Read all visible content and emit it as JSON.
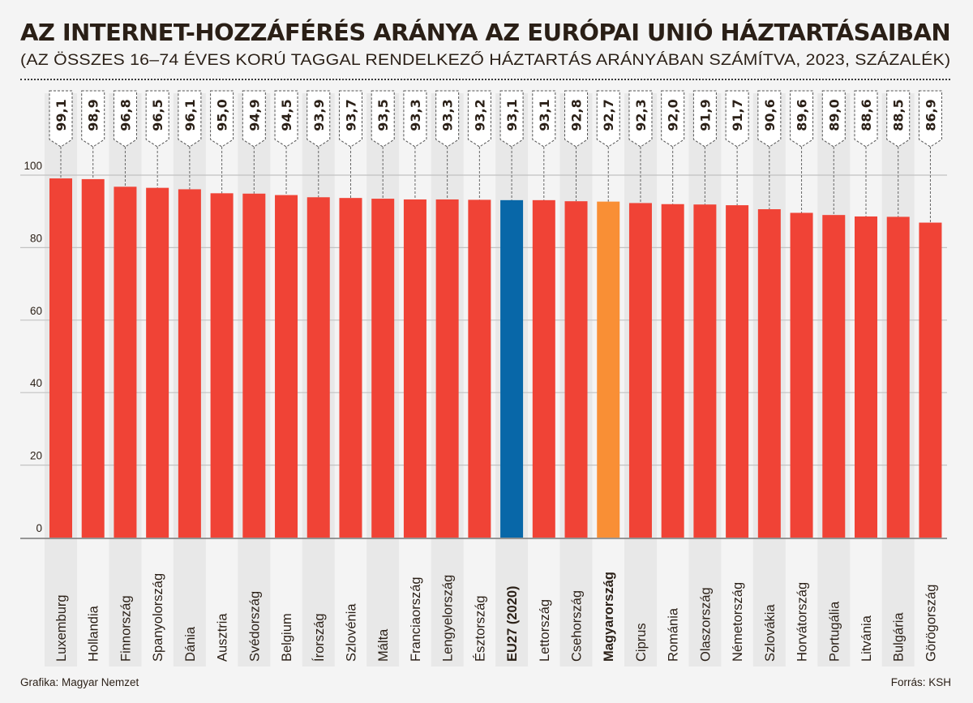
{
  "header": {
    "title": "AZ INTERNET-HOZZÁFÉRÉS ARÁNYA AZ EURÓPAI UNIÓ HÁZTARTÁSAIBAN",
    "subtitle": "(AZ ÖSSZES 16–74 ÉVES KORÚ TAGGAL RENDELKEZŐ HÁZTARTÁS ARÁNYÁBAN SZÁMÍTVA, 2023, SZÁZALÉK)"
  },
  "footer": {
    "credit": "Grafika: Magyar Nemzet",
    "source": "Forrás: KSH"
  },
  "colors": {
    "default_bar": "#f04336",
    "eu_average_bar": "#0867a8",
    "hungary_bar": "#f98f35",
    "band": "#e8e8e8",
    "background": "#f4f4f4",
    "text": "#2a1f16"
  },
  "chart_data": {
    "type": "bar",
    "title": "AZ INTERNET-HOZZÁFÉRÉS ARÁNYA AZ EURÓPAI UNIÓ HÁZTARTÁSAIBAN",
    "subtitle": "(AZ ÖSSZES 16–74 ÉVES KORÚ TAGGAL RENDELKEZŐ HÁZTARTÁS ARÁNYÁBAN SZÁMÍTVA, 2023, SZÁZALÉK)",
    "xlabel": "",
    "ylabel": "",
    "ylim": [
      0,
      100
    ],
    "yticks": [
      0,
      20,
      40,
      60,
      80,
      100
    ],
    "grid": true,
    "legend": "none",
    "categories": [
      "Luxemburg",
      "Hollandia",
      "Finnország",
      "Spanyolország",
      "Dánia",
      "Ausztria",
      "Svédország",
      "Belgium",
      "Írország",
      "Szlovénia",
      "Málta",
      "Franciaország",
      "Lengyelország",
      "Észtország",
      "EU27 (2020)",
      "Lettország",
      "Csehország",
      "Magyarország",
      "Ciprus",
      "Románia",
      "Olaszország",
      "Németország",
      "Szlovákia",
      "Horvátország",
      "Portugália",
      "Litvánia",
      "Bulgária",
      "Görögország"
    ],
    "values": [
      99.1,
      98.9,
      96.8,
      96.5,
      96.1,
      95.0,
      94.9,
      94.5,
      93.9,
      93.7,
      93.5,
      93.3,
      93.3,
      93.2,
      93.1,
      93.1,
      92.8,
      92.7,
      92.3,
      92.0,
      91.9,
      91.7,
      90.6,
      89.6,
      89.0,
      88.6,
      88.5,
      86.9
    ],
    "value_labels": [
      "99,1",
      "98,9",
      "96,8",
      "96,5",
      "96,1",
      "95,0",
      "94,9",
      "94,5",
      "93,9",
      "93,7",
      "93,5",
      "93,3",
      "93,3",
      "93,2",
      "93,1",
      "93,1",
      "92,8",
      "92,7",
      "92,3",
      "92,0",
      "91,9",
      "91,7",
      "90,6",
      "89,6",
      "89,0",
      "88,6",
      "88,5",
      "86,9"
    ],
    "highlights": {
      "EU27 (2020)": "eu_average",
      "Magyarország": "hungary"
    },
    "bold_categories": [
      "EU27 (2020)",
      "Magyarország"
    ]
  }
}
